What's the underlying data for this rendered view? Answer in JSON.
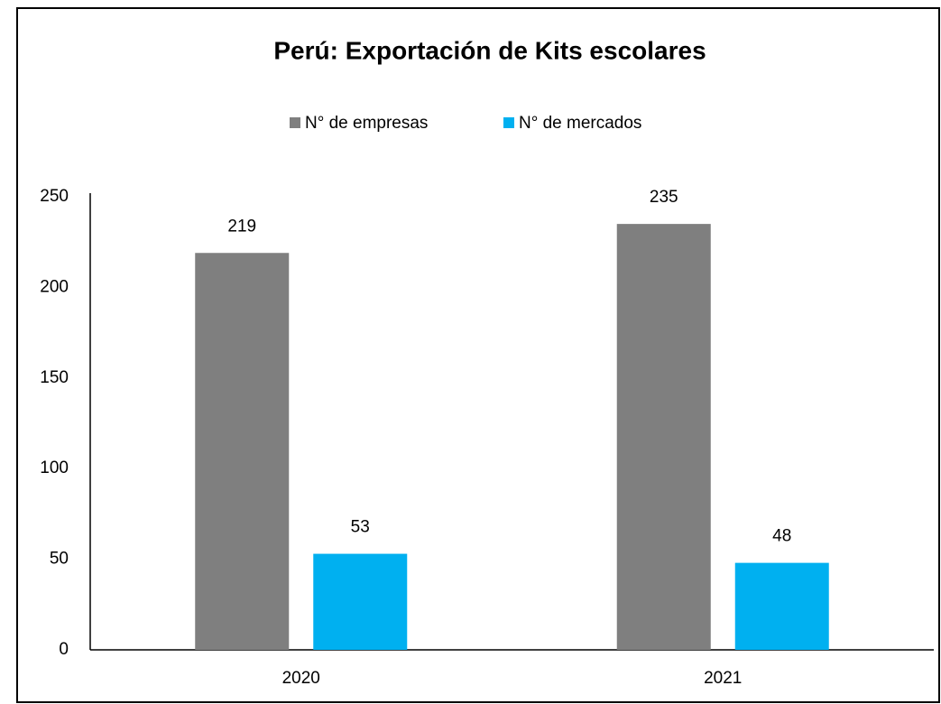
{
  "chart_data": {
    "type": "bar",
    "title": "Perú: Exportación de Kits escolares",
    "categories": [
      "2020",
      "2021"
    ],
    "series": [
      {
        "name": "N° de empresas",
        "color": "#7f7f7f",
        "values": [
          219,
          235
        ]
      },
      {
        "name": "N° de mercados",
        "color": "#00b0f0",
        "values": [
          53,
          48
        ]
      }
    ],
    "ylim": [
      0,
      250
    ],
    "yticks": [
      0,
      50,
      100,
      150,
      200,
      250
    ],
    "grid": false,
    "legend": "top"
  }
}
